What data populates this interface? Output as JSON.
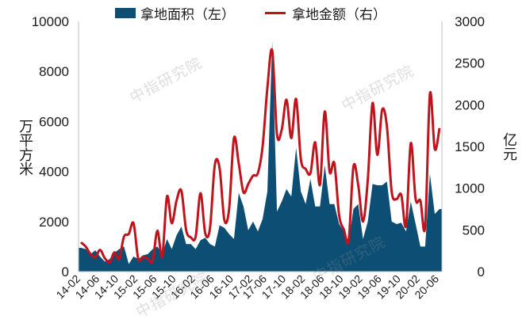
{
  "legend": {
    "area_label": "拿地面积（左）",
    "line_label": "拿地金额（右）",
    "area_color": "#0d4f74",
    "line_color": "#c0141c"
  },
  "axes": {
    "left_label": "万平方米",
    "right_label": "亿元"
  },
  "watermarks": [
    "中指研究院",
    "中指研究院",
    "中指研究院",
    "中指研究院"
  ],
  "chart_data": {
    "type": "area",
    "x_tick_labels": [
      "14-02",
      "14-06",
      "14-10",
      "15-02",
      "15-06",
      "15-10",
      "16-02",
      "16-06",
      "16-10",
      "17-02",
      "17-06",
      "17-10",
      "18-02",
      "18-06",
      "18-10",
      "19-02",
      "19-06",
      "19-10",
      "20-02",
      "20-06"
    ],
    "left_axis": {
      "label": "万平方米",
      "range": [
        0,
        10000
      ],
      "ticks": [
        0,
        2000,
        4000,
        6000,
        8000,
        10000
      ]
    },
    "right_axis": {
      "label": "亿元",
      "range": [
        0,
        3000
      ],
      "ticks": [
        0,
        500,
        1000,
        1500,
        2000,
        2500,
        3000
      ]
    },
    "grid": false,
    "legend_position": "top",
    "series": [
      {
        "name": "拿地面积（左）",
        "kind": "area",
        "axis": "left",
        "values": [
          950,
          900,
          700,
          850,
          600,
          400,
          500,
          750,
          900,
          1000,
          300,
          600,
          500,
          650,
          700,
          900,
          1000,
          700,
          1300,
          900,
          1450,
          1800,
          1100,
          1100,
          900,
          1250,
          1350,
          1100,
          1000,
          1850,
          1750,
          1500,
          1300,
          3150,
          2600,
          1650,
          2000,
          1600,
          2100,
          3200,
          9200,
          2400,
          2800,
          3300,
          3000,
          4950,
          3200,
          2700,
          3700,
          2600,
          2600,
          4250,
          2700,
          2700,
          1900,
          1600,
          1200,
          2500,
          2700,
          1300,
          2000,
          3500,
          3450,
          3450,
          3600,
          2000,
          1900,
          1950,
          1600,
          2800,
          1900,
          1000,
          1000,
          3900,
          2300,
          2500
        ]
      },
      {
        "name": "拿地金额（右）",
        "kind": "line",
        "axis": "right",
        "values": [
          350,
          300,
          210,
          170,
          260,
          160,
          110,
          230,
          150,
          420,
          450,
          580,
          150,
          180,
          150,
          130,
          490,
          180,
          900,
          580,
          850,
          970,
          500,
          410,
          420,
          940,
          460,
          520,
          1280,
          1240,
          620,
          750,
          1600,
          1300,
          950,
          1050,
          1150,
          1180,
          1500,
          2200,
          2650,
          1650,
          1700,
          2060,
          1600,
          2070,
          1350,
          1230,
          1180,
          1550,
          1040,
          1920,
          1200,
          1300,
          680,
          500,
          380,
          1260,
          1040,
          600,
          1100,
          2020,
          1400,
          1940,
          1740,
          960,
          870,
          920,
          550,
          1540,
          870,
          850,
          540,
          2130,
          1470,
          1720
        ]
      }
    ]
  }
}
